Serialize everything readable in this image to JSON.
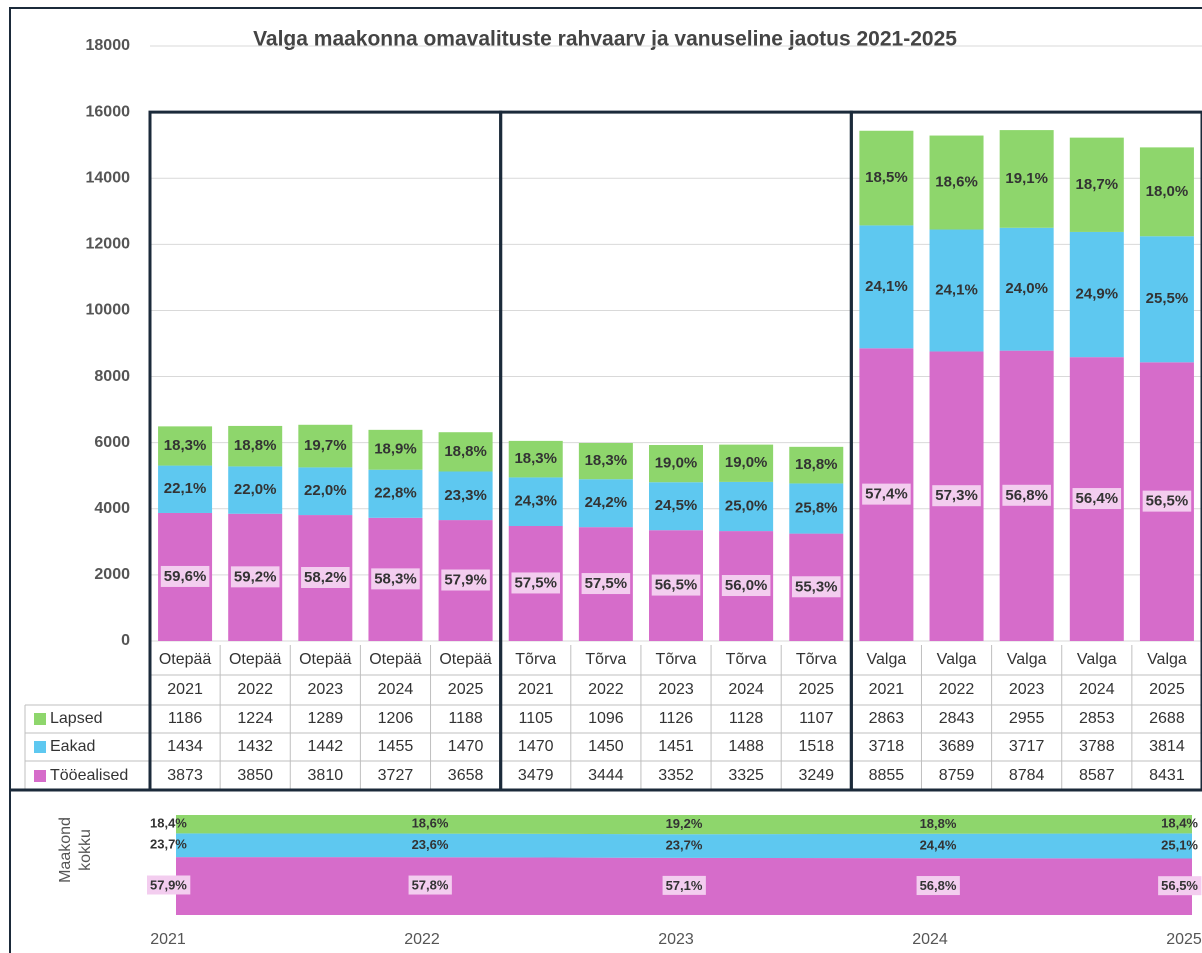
{
  "chart_data": [
    {
      "type": "bar",
      "stacked": true,
      "title": "Valga maakonna omavalituste rahvaarv ja vanuseline jaotus 2021-2025",
      "categories": [
        [
          "Otepää",
          "2021"
        ],
        [
          "Otepää",
          "2022"
        ],
        [
          "Otepää",
          "2023"
        ],
        [
          "Otepää",
          "2024"
        ],
        [
          "Otepää",
          "2025"
        ],
        [
          "Tõrva",
          "2021"
        ],
        [
          "Tõrva",
          "2022"
        ],
        [
          "Tõrva",
          "2023"
        ],
        [
          "Tõrva",
          "2024"
        ],
        [
          "Tõrva",
          "2025"
        ],
        [
          "Valga",
          "2021"
        ],
        [
          "Valga",
          "2022"
        ],
        [
          "Valga",
          "2023"
        ],
        [
          "Valga",
          "2024"
        ],
        [
          "Valga",
          "2025"
        ]
      ],
      "series": [
        {
          "name": "Tööealised",
          "color": "#d66cca",
          "values": [
            3873,
            3850,
            3810,
            3727,
            3658,
            3479,
            3444,
            3352,
            3325,
            3249,
            8855,
            8759,
            8784,
            8587,
            8431
          ],
          "share_labels": [
            "59,6%",
            "59,2%",
            "58,2%",
            "58,3%",
            "57,9%",
            "57,5%",
            "57,5%",
            "56,5%",
            "56,0%",
            "55,3%",
            "57,4%",
            "57,3%",
            "56,8%",
            "56,4%",
            "56,5%"
          ]
        },
        {
          "name": "Eakad",
          "color": "#5ec8f0",
          "values": [
            1434,
            1432,
            1442,
            1455,
            1470,
            1470,
            1450,
            1451,
            1488,
            1518,
            3718,
            3689,
            3717,
            3788,
            3814
          ],
          "share_labels": [
            "22,1%",
            "22,0%",
            "22,0%",
            "22,8%",
            "23,3%",
            "24,3%",
            "24,2%",
            "24,5%",
            "25,0%",
            "25,8%",
            "24,1%",
            "24,1%",
            "24,0%",
            "24,9%",
            "25,5%"
          ]
        },
        {
          "name": "Lapsed",
          "color": "#8ed66c",
          "values": [
            1186,
            1224,
            1289,
            1206,
            1188,
            1105,
            1096,
            1126,
            1128,
            1107,
            2863,
            2843,
            2955,
            2853,
            2688
          ],
          "share_labels": [
            "18,3%",
            "18,8%",
            "19,7%",
            "18,9%",
            "18,8%",
            "18,3%",
            "18,3%",
            "19,0%",
            "19,0%",
            "18,8%",
            "18,5%",
            "18,6%",
            "19,1%",
            "18,7%",
            "18,0%"
          ]
        }
      ],
      "ylim": [
        0,
        18000
      ],
      "yticks": [
        0,
        2000,
        4000,
        6000,
        8000,
        10000,
        12000,
        14000,
        16000,
        18000
      ],
      "grid": true
    },
    {
      "type": "area",
      "stacked": true,
      "ylabel_lines": [
        "Maakond",
        "kokku"
      ],
      "categories": [
        "2021",
        "2022",
        "2023",
        "2024",
        "2025"
      ],
      "series": [
        {
          "color": "#d66cca",
          "values": [
            57.9,
            57.8,
            57.1,
            56.8,
            56.5
          ],
          "value_labels": [
            "57,9%",
            "57,8%",
            "57,1%",
            "56,8%",
            "56,5%"
          ]
        },
        {
          "color": "#5ec8f0",
          "values": [
            23.7,
            23.6,
            23.7,
            24.4,
            25.1
          ],
          "value_labels": [
            "23,7%",
            "23,6%",
            "23,7%",
            "24,4%",
            "25,1%"
          ]
        },
        {
          "color": "#8ed66c",
          "values": [
            18.4,
            18.6,
            19.2,
            18.8,
            18.4
          ],
          "value_labels": [
            "18,4%",
            "18,6%",
            "19,2%",
            "18,8%",
            "18,4%"
          ]
        }
      ],
      "ylim": [
        0,
        100
      ]
    }
  ]
}
